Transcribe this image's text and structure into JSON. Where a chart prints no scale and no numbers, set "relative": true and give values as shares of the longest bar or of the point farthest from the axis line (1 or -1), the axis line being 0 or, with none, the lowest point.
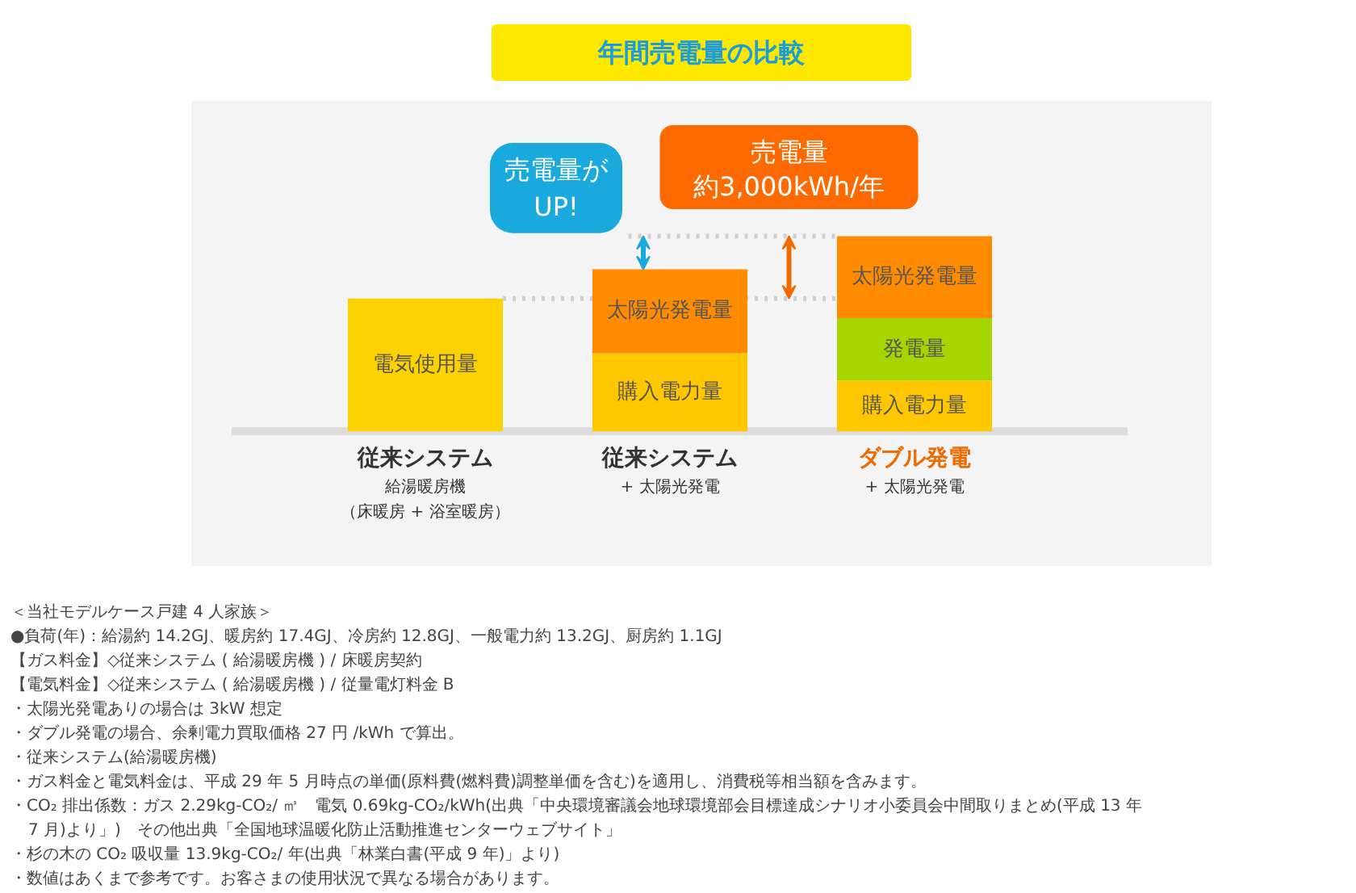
{
  "chart_data": {
    "type": "bar",
    "stacked": true,
    "relative": true,
    "title": "年間売電量の比較",
    "categories": [
      "従来システム",
      "従来システム",
      "ダブル発電"
    ],
    "series": [
      {
        "name": "電気使用量",
        "color": "#fcd200",
        "values": [
          0.68,
          null,
          null
        ]
      },
      {
        "name": "購入電力量",
        "color": "#fec700",
        "values": [
          null,
          0.4,
          0.26
        ]
      },
      {
        "name": "発電量",
        "color": "#a7d500",
        "values": [
          null,
          null,
          0.32
        ]
      },
      {
        "name": "太陽光発電量",
        "color": "#ff8c00",
        "values": [
          null,
          0.43,
          0.42
        ]
      }
    ],
    "ref_lines": [
      {
        "axis": "y",
        "value": 0.68,
        "color": "#cfcfcf",
        "line_style": "dotted"
      },
      {
        "axis": "y",
        "value": 1.0,
        "color": "#cfcfcf",
        "line_style": "dotted"
      }
    ],
    "annotations": [
      "売電量が\nUP!",
      "売電量",
      "約3,000kWh/年",
      "給湯暖房機",
      "（床暖房 + 浴室暖房）",
      "+ 太陽光発電",
      "+ 太陽光発電",
      "＜当社モデルケース戸建 4 人家族＞",
      "●負荷(年)：給湯約 14.2GJ、暖房約 17.4GJ、冷房約 12.8GJ、一般電力約 13.2GJ、厨房約 1.1GJ",
      "【ガス料金】◇従来システム ( 給湯暖房機 ) / 床暖房契約",
      "【電気料金】◇従来システム ( 給湯暖房機 ) / 従量電灯料金 B",
      "・太陽光発電ありの場合は 3kW 想定",
      "・ダブル発電の場合、余剰電力買取価格 27 円 /kWh で算出。",
      "・従来システム(給湯暖房機)",
      "・ガス料金と電気料金は、平成 29 年 5 月時点の単価(原料費(燃料費)調整単価を含む)を適用し、消費税等相当額を含みます。",
      "・CO₂ 排出係数：ガス 2.29kg-CO₂/ ㎥　電気 0.69kg-CO₂/kWh(出典「中央環境審議会地球環境部会目標達成シナリオ小委員会中間取りまとめ(平成 13 年 7 月)より」)　その他出典「全国地球温暖化防止活動推進センターウェブサイト」",
      "・杉の木の CO₂ 吸収量 13.9kg-CO₂/ 年(出典「林業白書(平成 9 年)」より)",
      "・数値はあくまで参考です。お客さまの使用状況で異なる場合があります。"
    ]
  }
}
